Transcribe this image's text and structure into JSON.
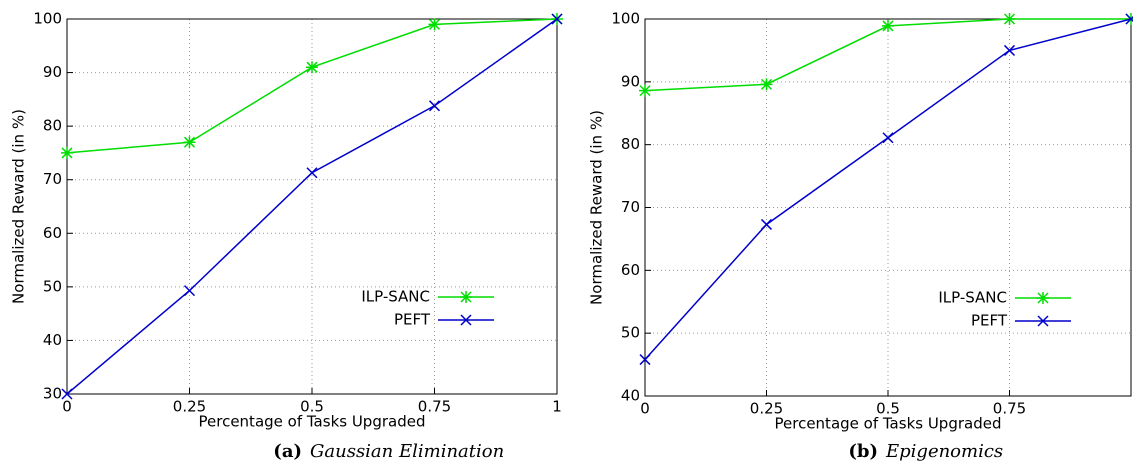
{
  "chart_data": [
    {
      "type": "line",
      "caption_label": "(a)",
      "caption": "Gaussian Elimination",
      "x_label": "Percentage of Tasks Upgraded",
      "y_label": "Normalized Reward (in %)",
      "x": [
        0,
        0.25,
        0.5,
        0.75,
        1
      ],
      "series": [
        {
          "name": "ILP-SANC",
          "color": "#00dd00",
          "marker": "star",
          "values": [
            75,
            77,
            91,
            99,
            100
          ]
        },
        {
          "name": "PEFT",
          "color": "#0000cc",
          "marker": "x",
          "values": [
            30,
            49.3,
            71.3,
            83.8,
            100
          ]
        }
      ],
      "xlim": [
        0,
        1
      ],
      "xticks": [
        0,
        0.25,
        0.5,
        0.75,
        1
      ],
      "ylim": [
        30,
        100
      ],
      "yticks": [
        30,
        40,
        50,
        60,
        70,
        80,
        90,
        100
      ],
      "grid": true
    },
    {
      "type": "line",
      "caption_label": "(b)",
      "caption": "Epigenomics",
      "x_label": "Percentage of Tasks Upgraded",
      "y_label": "Normalized Reward (in %)",
      "x": [
        0,
        0.25,
        0.5,
        0.75,
        1
      ],
      "series": [
        {
          "name": "ILP-SANC",
          "color": "#00dd00",
          "marker": "star",
          "values": [
            88.6,
            89.6,
            98.9,
            100,
            100
          ]
        },
        {
          "name": "PEFT",
          "color": "#0000cc",
          "marker": "x",
          "values": [
            45.8,
            67.3,
            81.1,
            95,
            100
          ]
        }
      ],
      "xlim": [
        0,
        1
      ],
      "xticks": [
        0,
        0.25,
        0.5,
        0.75
      ],
      "ylim": [
        40,
        100
      ],
      "yticks": [
        40,
        50,
        60,
        70,
        80,
        90,
        100
      ],
      "grid": true
    }
  ]
}
